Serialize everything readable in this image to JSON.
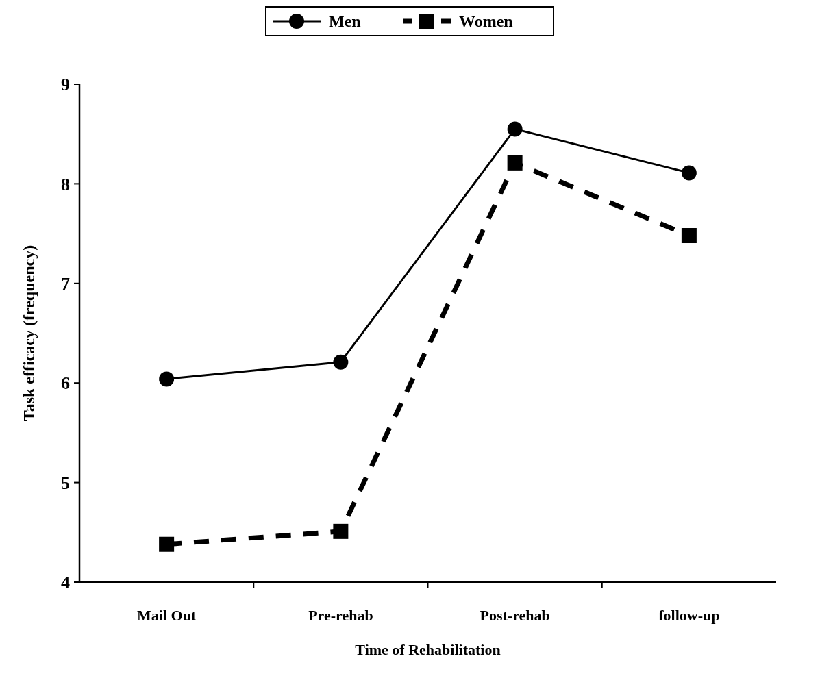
{
  "chart_data": {
    "type": "line",
    "xlabel": "Time of Rehabilitation",
    "ylabel": "Task efficacy (frequency)",
    "categories": [
      "Mail Out",
      "Pre-rehab",
      "Post-rehab",
      "follow-up"
    ],
    "series": [
      {
        "name": "Men",
        "color": "#000000",
        "values": [
          6.04,
          6.21,
          8.55,
          8.11
        ],
        "marker": "circle",
        "line_style": "solid"
      },
      {
        "name": "Women",
        "color": "#000000",
        "values": [
          4.38,
          4.51,
          8.21,
          7.48
        ],
        "marker": "square",
        "line_style": "dashed"
      }
    ],
    "ylim": [
      4,
      9
    ],
    "yticks": [
      4,
      5,
      6,
      7,
      8,
      9
    ],
    "grid": false,
    "legend": "top"
  }
}
